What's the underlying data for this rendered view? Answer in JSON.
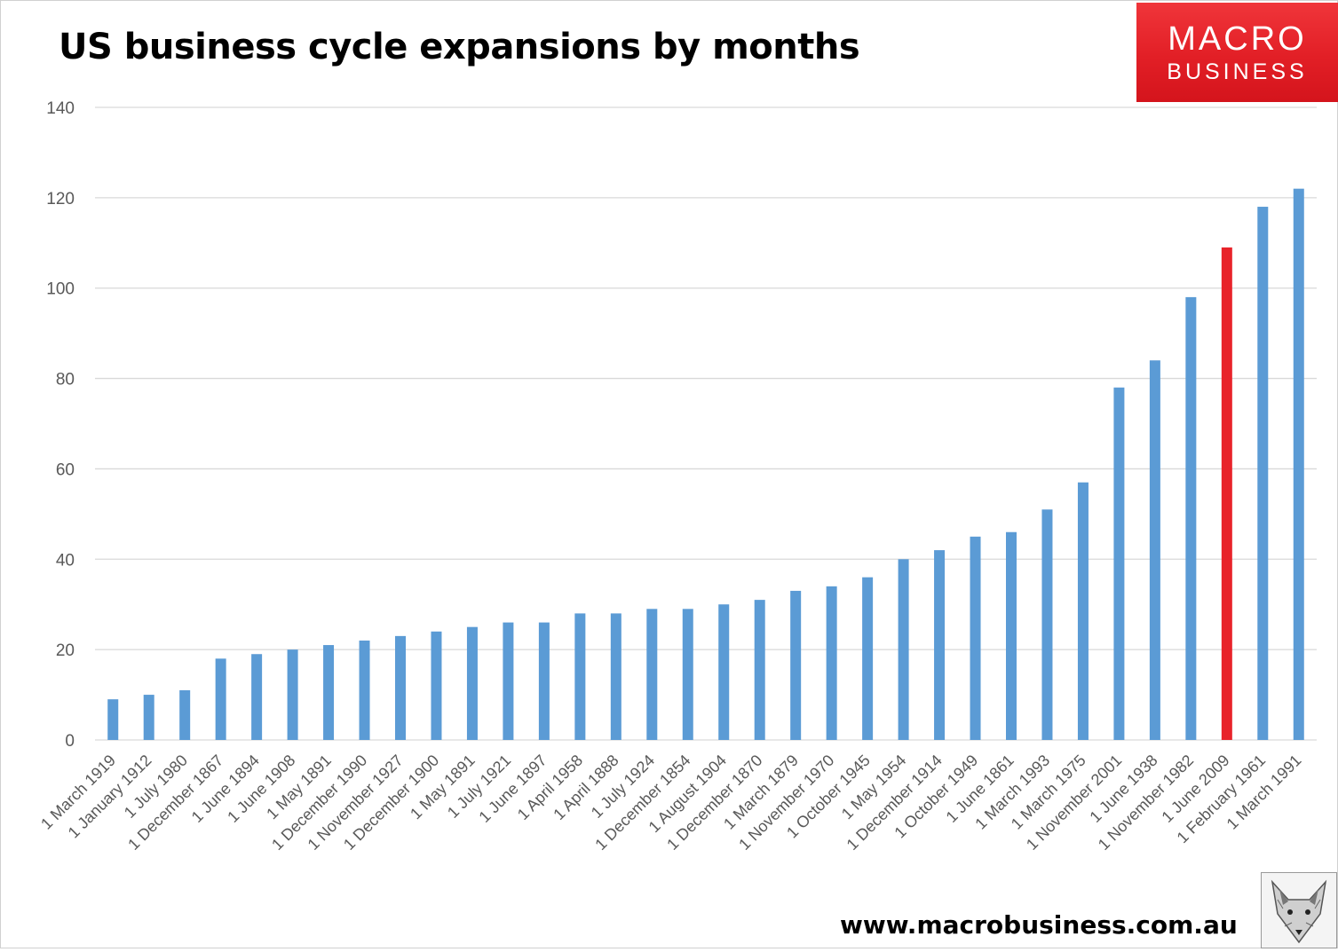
{
  "chart_data": {
    "type": "bar",
    "title": "US business cycle expansions by months",
    "xlabel": "",
    "ylabel": "",
    "ylim": [
      0,
      140
    ],
    "yticks": [
      0,
      20,
      40,
      60,
      80,
      100,
      120,
      140
    ],
    "grid": true,
    "legend": "none",
    "categories": [
      "1 March 1919",
      "1 January 1912",
      "1 July 1980",
      "1 December 1867",
      "1 June 1894",
      "1 June 1908",
      "1 May 1891",
      "1 December 1990",
      "1 November 1927",
      "1 December 1900",
      "1 May 1891",
      "1 July 1921",
      "1 June 1897",
      "1 April 1958",
      "1 April 1888",
      "1 July 1924",
      "1 December 1854",
      "1 August 1904",
      "1 December 1870",
      "1 March 1879",
      "1 November 1970",
      "1 October 1945",
      "1 May 1954",
      "1 December 1914",
      "1 October 1949",
      "1 June 1861",
      "1 March 1993",
      "1 March 1975",
      "1 November 2001",
      "1 June 1938",
      "1 November 1982",
      "1 June 2009",
      "1 February 1961",
      "1 March 1991"
    ],
    "values": [
      9,
      10,
      11,
      18,
      19,
      20,
      21,
      22,
      23,
      24,
      25,
      26,
      26,
      28,
      28,
      29,
      29,
      30,
      31,
      33,
      34,
      36,
      40,
      42,
      45,
      46,
      51,
      57,
      78,
      84,
      98,
      109,
      118,
      122
    ],
    "highlight_index": 31,
    "colors": {
      "bar": "#5b9bd5",
      "highlight": "#e8232a",
      "grid": "#d9d9d9",
      "tick_label": "#595959"
    }
  },
  "logo": {
    "line1": "MACRO",
    "line2": "BUSINESS"
  },
  "footer": {
    "url": "www.macrobusiness.com.au"
  },
  "fox_icon": "fox-head-icon"
}
